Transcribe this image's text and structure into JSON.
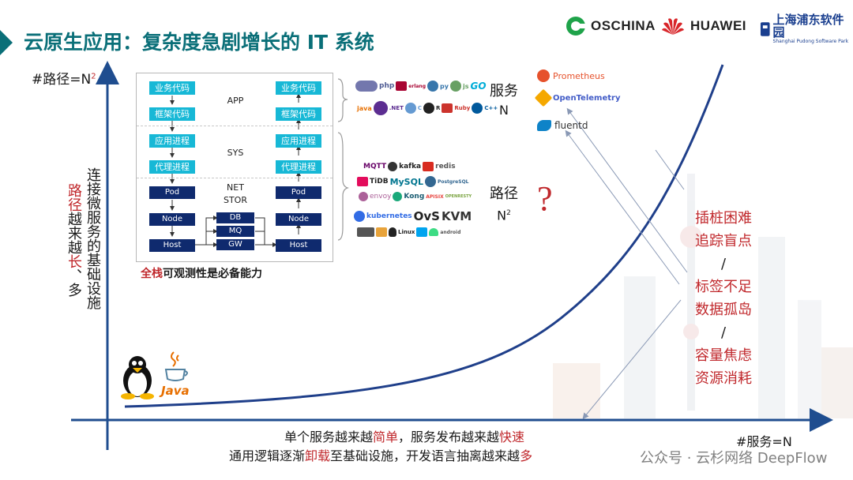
{
  "title": "云原生应用：复杂度急剧增长的 IT 系统",
  "logos": {
    "oschina": "OSCHINA",
    "huawei": "HUAWEI",
    "spp_main": "上海浦东软件园",
    "spp_sub": "Shanghai Pudong Software Park"
  },
  "y_axis": {
    "label": "#路径=N",
    "sup": "2"
  },
  "x_axis": {
    "label": "#服务=N"
  },
  "left_text": {
    "part1": "路径",
    "part2": "越来越",
    "part3": "长",
    "part4": "、多",
    "part5": "连接微服务的基础设施"
  },
  "stack": {
    "layers": [
      "APP",
      "SYS",
      "NET",
      "STOR"
    ],
    "left": [
      "业务代码",
      "框架代码",
      "应用进程",
      "代理进程",
      "Pod",
      "Node",
      "Host"
    ],
    "middle": [
      "DB",
      "MQ",
      "GW"
    ],
    "right": [
      "业务代码",
      "框架代码",
      "应用进程",
      "代理进程",
      "Pod",
      "Node",
      "Host"
    ]
  },
  "caption": {
    "red": "全栈",
    "rest": "可观测性是必备能力"
  },
  "tech": {
    "app_row1": [
      "php",
      "erlang",
      "py",
      "js",
      "GO"
    ],
    "app_row2": [
      "java",
      ".NET",
      "C",
      "R",
      "Ruby",
      "C++"
    ],
    "net_row1": [
      "MQTT",
      "kafka",
      "redis"
    ],
    "net_row2": [
      "TiDB",
      "MySQL",
      "PostgreSQL"
    ],
    "net_row3": [
      "envoy",
      "Kong",
      "APISIX",
      "OPENRESTY"
    ],
    "sys_row1": [
      "kubernetes",
      "OvS",
      "KVM"
    ],
    "sys_row2": [
      "Linux",
      "Windows",
      "android"
    ]
  },
  "services_label": [
    "服务",
    "N"
  ],
  "paths_label": [
    "路径",
    "N",
    "2"
  ],
  "question": "?",
  "observability_tools": [
    "Prometheus",
    "OpenTelemetry",
    "fluentd"
  ],
  "pain_points": [
    "插桩困难",
    "追踪盲点",
    "/",
    "标签不足",
    "数据孤岛",
    "/",
    "容量焦虑",
    "资源消耗"
  ],
  "bottom_line1": {
    "a": "单个服务越来越",
    "b": "简单",
    "c": "，服务发布越来越",
    "d": "快速"
  },
  "bottom_line2": {
    "a": "通用逻辑逐渐",
    "b": "卸载",
    "c": "至基础设施，开发语言",
    "d": "抽离越来越",
    "e": "多"
  },
  "base_label": "Java",
  "watermark": "公众号 · 云杉网络 DeepFlow",
  "colors": {
    "accent": "#0a6f78",
    "red": "#c0282c",
    "axis": "#1f4d8f",
    "cyan": "#17b8d6",
    "navy": "#0f2a6e"
  }
}
